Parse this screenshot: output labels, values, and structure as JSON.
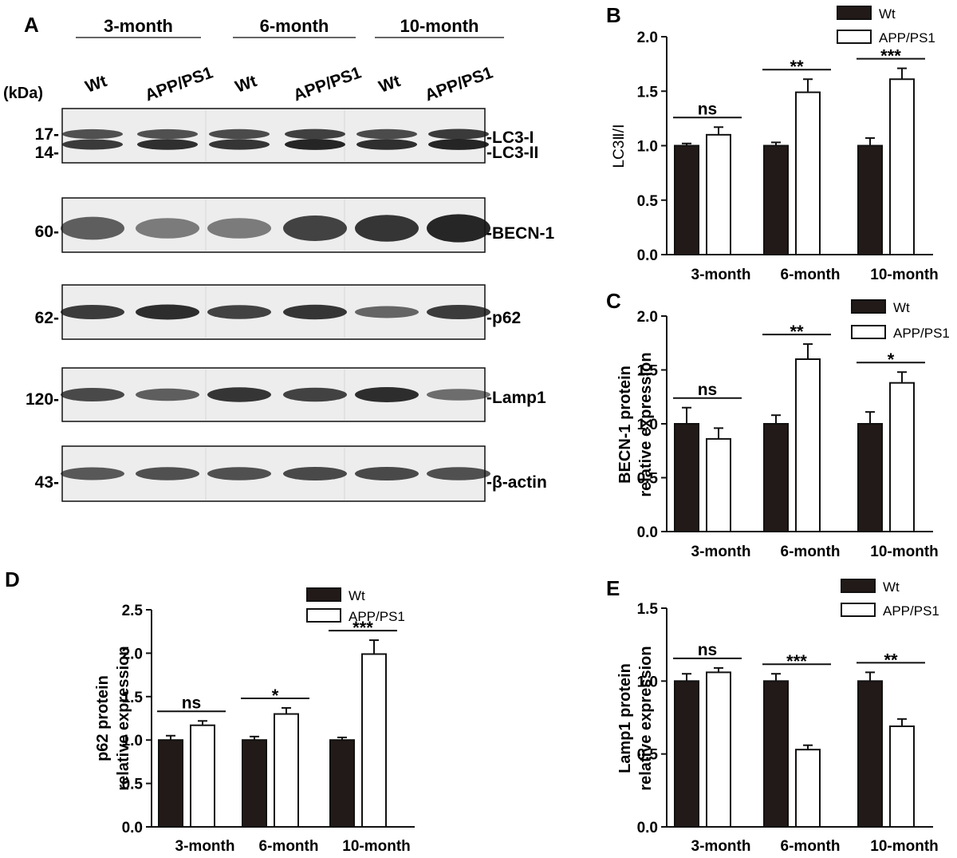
{
  "panel_a": {
    "letter": "A",
    "kda_label": "(kDa)",
    "groups": [
      "3-month",
      "6-month",
      "10-month"
    ],
    "lanes": [
      "Wt",
      "APP/PS1",
      "Wt",
      "APP/PS1",
      "Wt",
      "APP/PS1"
    ],
    "blots": [
      {
        "markers": [
          "17-",
          "14-"
        ],
        "labels": [
          "-LC3-I",
          "-LC3-II"
        ],
        "bands": [
          [
            0.55,
            0.75
          ],
          [
            0.55,
            0.85
          ],
          [
            0.6,
            0.8
          ],
          [
            0.7,
            0.95
          ],
          [
            0.6,
            0.85
          ],
          [
            0.75,
            0.95
          ]
        ]
      },
      {
        "markers": [
          "60-"
        ],
        "labels": [
          "-BECN-1"
        ],
        "bands": [
          0.55,
          0.35,
          0.35,
          0.75,
          0.85,
          0.95
        ]
      },
      {
        "markers": [
          "62-"
        ],
        "labels": [
          "-p62"
        ],
        "bands": [
          0.8,
          0.9,
          0.75,
          0.85,
          0.5,
          0.8
        ]
      },
      {
        "markers": [
          "120-"
        ],
        "labels": [
          "-Lamp1"
        ],
        "bands": [
          0.7,
          0.55,
          0.85,
          0.75,
          0.9,
          0.45
        ]
      },
      {
        "markers": [
          "43-"
        ],
        "labels": [
          "-β-actin"
        ],
        "bands": [
          0.6,
          0.65,
          0.65,
          0.7,
          0.7,
          0.65
        ]
      }
    ]
  },
  "chart_data": [
    {
      "panel": "B",
      "type": "bar",
      "categories": [
        "3-month",
        "6-month",
        "10-month"
      ],
      "series": [
        {
          "name": "Wt",
          "values": [
            1.0,
            1.0,
            1.0
          ],
          "errors": [
            0.02,
            0.03,
            0.07
          ]
        },
        {
          "name": "APP/PS1",
          "values": [
            1.1,
            1.49,
            1.61
          ],
          "errors": [
            0.07,
            0.12,
            0.1
          ]
        }
      ],
      "significance": [
        "ns",
        "**",
        "***"
      ],
      "ylabel": "LC3Ⅱ/Ⅰ",
      "ylim": [
        0,
        2.0
      ],
      "yticks": [
        "0.0",
        "0.5",
        "1.0",
        "1.5",
        "2.0"
      ],
      "tick_values": [
        0,
        0.5,
        1.0,
        1.5,
        2.0
      ],
      "legend": "top-right"
    },
    {
      "panel": "C",
      "type": "bar",
      "categories": [
        "3-month",
        "6-month",
        "10-month"
      ],
      "series": [
        {
          "name": "Wt",
          "values": [
            1.0,
            1.0,
            1.0
          ],
          "errors": [
            0.15,
            0.08,
            0.11
          ]
        },
        {
          "name": "APP/PS1",
          "values": [
            0.86,
            1.6,
            1.38
          ],
          "errors": [
            0.1,
            0.14,
            0.1
          ]
        }
      ],
      "significance": [
        "ns",
        "**",
        "*"
      ],
      "ylabel": [
        "BECN-1 protein",
        "relative expression"
      ],
      "ylim": [
        0,
        2.0
      ],
      "yticks": [
        "0.0",
        "0.5",
        "1.0",
        "1.5",
        "2.0"
      ],
      "tick_values": [
        0,
        0.5,
        1.0,
        1.5,
        2.0
      ],
      "legend": "top-right"
    },
    {
      "panel": "D",
      "type": "bar",
      "categories": [
        "3-month",
        "6-month",
        "10-month"
      ],
      "series": [
        {
          "name": "Wt",
          "values": [
            1.0,
            1.0,
            1.0
          ],
          "errors": [
            0.05,
            0.04,
            0.03
          ]
        },
        {
          "name": "APP/PS1",
          "values": [
            1.17,
            1.3,
            1.99
          ],
          "errors": [
            0.05,
            0.07,
            0.16
          ]
        }
      ],
      "significance": [
        "ns",
        "*",
        "***"
      ],
      "ylabel": [
        "p62 protein",
        "relative expression"
      ],
      "ylim": [
        0,
        2.5
      ],
      "yticks": [
        "0.0",
        "0.5",
        "1.0",
        "1.5",
        "2.0",
        "2.5"
      ],
      "tick_values": [
        0,
        0.5,
        1.0,
        1.5,
        2.0,
        2.5
      ],
      "legend": "top-right"
    },
    {
      "panel": "E",
      "type": "bar",
      "categories": [
        "3-month",
        "6-month",
        "10-month"
      ],
      "series": [
        {
          "name": "Wt",
          "values": [
            1.0,
            1.0,
            1.0
          ],
          "errors": [
            0.05,
            0.05,
            0.06
          ]
        },
        {
          "name": "APP/PS1",
          "values": [
            1.06,
            0.53,
            0.69
          ],
          "errors": [
            0.03,
            0.03,
            0.05
          ]
        }
      ],
      "significance": [
        "ns",
        "***",
        "**"
      ],
      "ylabel": [
        "Lamp1 protein",
        "relative expression"
      ],
      "ylim": [
        0,
        1.5
      ],
      "yticks": [
        "0.0",
        "0.5",
        "1.0",
        "1.5"
      ],
      "tick_values": [
        0,
        0.5,
        1.0,
        1.5
      ],
      "legend": "top-right"
    }
  ]
}
